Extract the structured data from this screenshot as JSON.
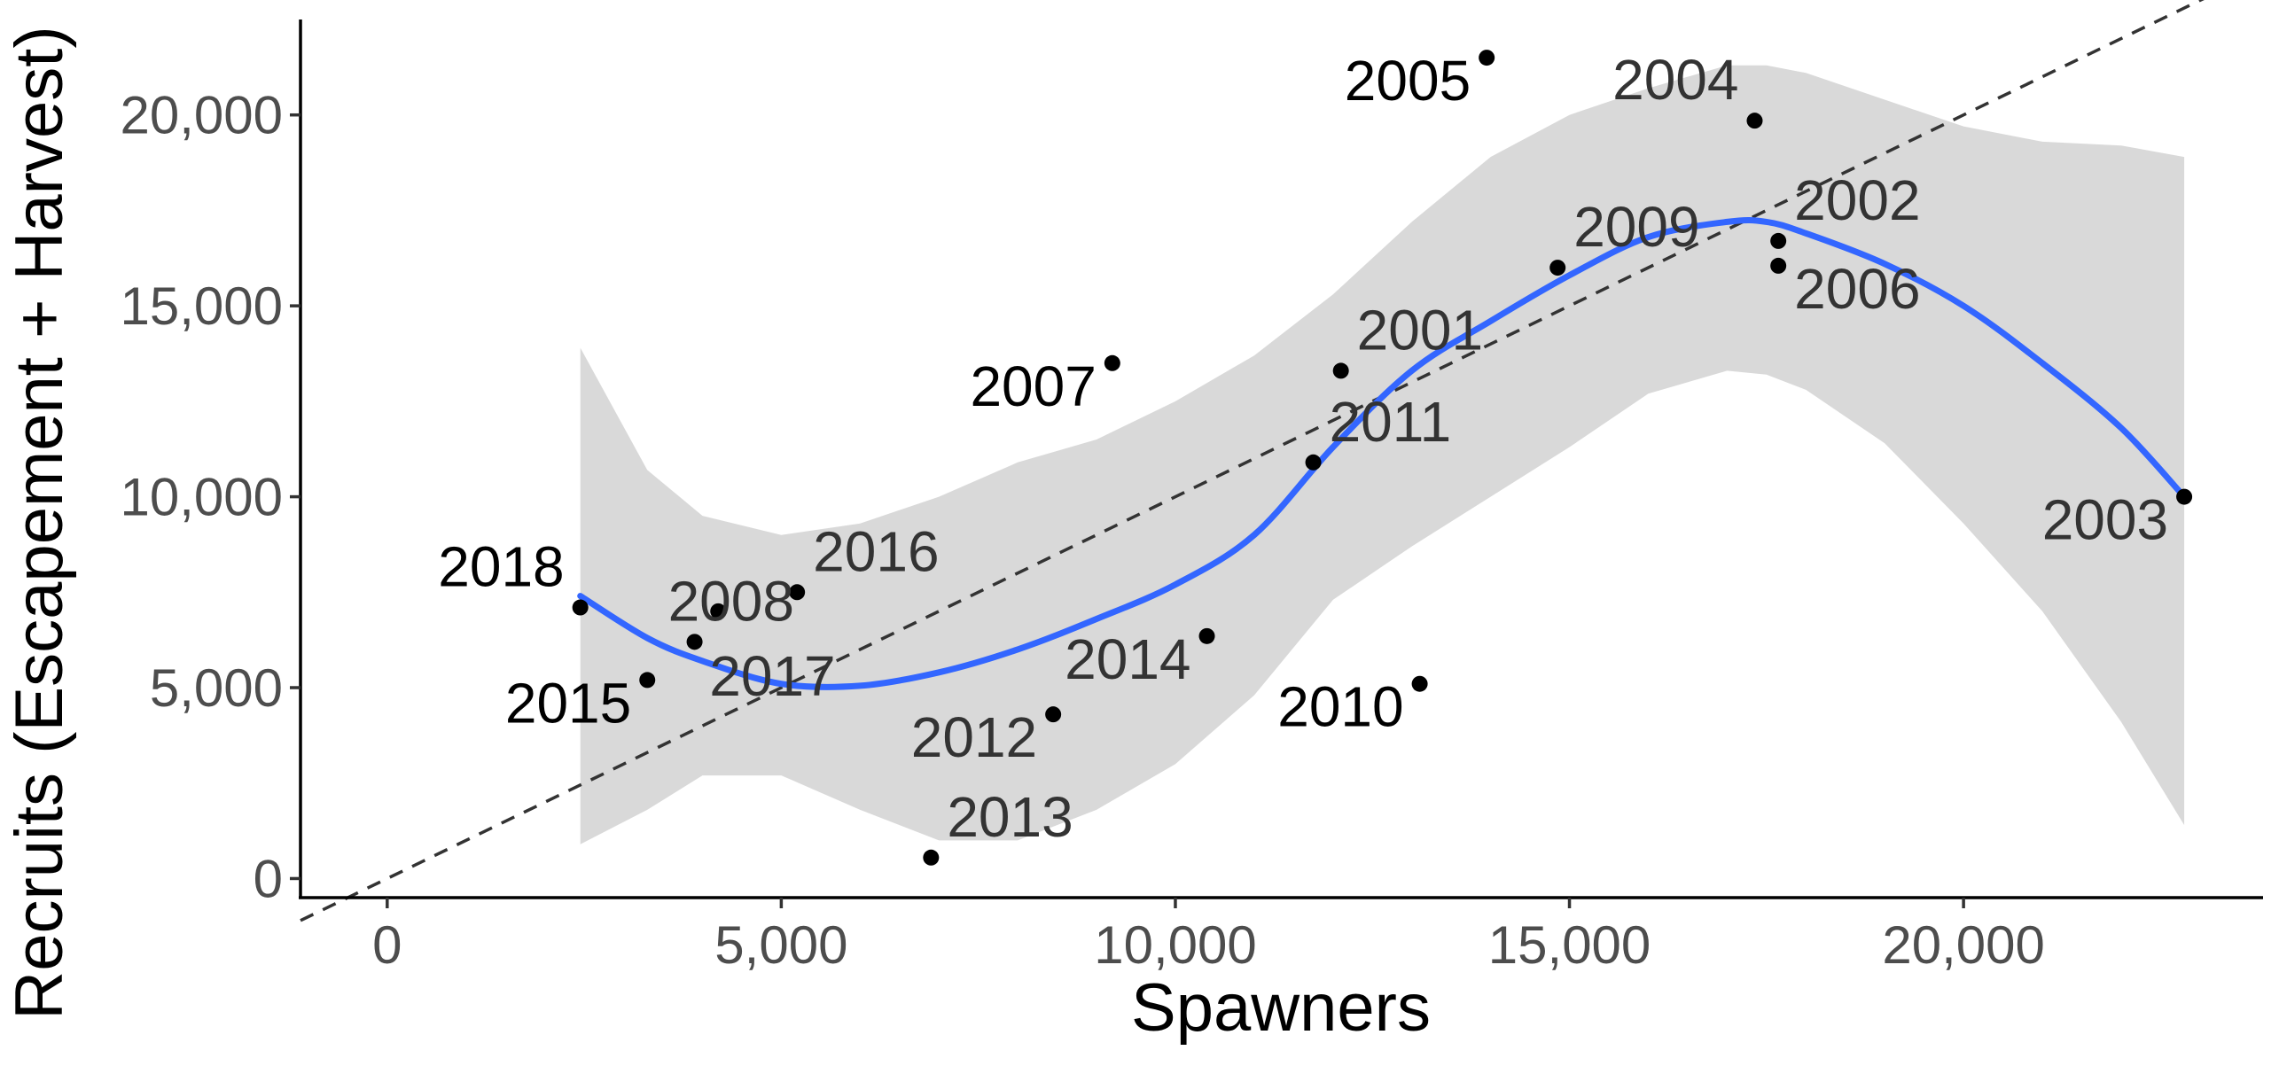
{
  "chart_data": {
    "type": "scatter",
    "title": "",
    "xlabel": "Spawners",
    "ylabel": "Recruits (Escapement + Harvest)",
    "xlim": [
      -1100,
      23800
    ],
    "ylim": [
      -500,
      22500
    ],
    "x_ticks": [
      0,
      5000,
      10000,
      15000,
      20000
    ],
    "x_tick_labels": [
      "0",
      "5,000",
      "10,000",
      "15,000",
      "20,000"
    ],
    "y_ticks": [
      0,
      5000,
      10000,
      15000,
      20000
    ],
    "y_tick_labels": [
      "0",
      "5,000",
      "10,000",
      "15,000",
      "20,000"
    ],
    "grid": false,
    "colors": {
      "points": "#000000",
      "smooth_line": "#3366ff",
      "confidence_band": "#d9d9d9",
      "replacement_line": "#333333",
      "label_dark": "#000000",
      "label_grey": "#333333"
    },
    "points": [
      {
        "label": "2001",
        "x": 12100,
        "y": 13300
      },
      {
        "label": "2002",
        "x": 17650,
        "y": 16700
      },
      {
        "label": "2003",
        "x": 22800,
        "y": 10000
      },
      {
        "label": "2004",
        "x": 17350,
        "y": 19850
      },
      {
        "label": "2005",
        "x": 13950,
        "y": 21500
      },
      {
        "label": "2006",
        "x": 17650,
        "y": 16050
      },
      {
        "label": "2007",
        "x": 9200,
        "y": 13500
      },
      {
        "label": "2008",
        "x": 3900,
        "y": 6200
      },
      {
        "label": "2009",
        "x": 14850,
        "y": 16000
      },
      {
        "label": "2010",
        "x": 13100,
        "y": 5100
      },
      {
        "label": "2011",
        "x": 11750,
        "y": 10900
      },
      {
        "label": "2012",
        "x": 8450,
        "y": 4300
      },
      {
        "label": "2013",
        "x": 6900,
        "y": 550
      },
      {
        "label": "2014",
        "x": 10400,
        "y": 6350
      },
      {
        "label": "2015",
        "x": 3300,
        "y": 5200
      },
      {
        "label": "2016",
        "x": 5200,
        "y": 7500
      },
      {
        "label": "2017",
        "x": 4200,
        "y": 7000
      },
      {
        "label": "2018",
        "x": 2450,
        "y": 7100
      }
    ],
    "smooth_fit": {
      "x": [
        2450,
        3300,
        4000,
        5000,
        6000,
        7000,
        8000,
        9000,
        10000,
        11000,
        12000,
        13000,
        14000,
        15000,
        16000,
        17000,
        17500,
        18000,
        19000,
        20000,
        21000,
        22000,
        22800
      ],
      "y": [
        7400,
        6300,
        5700,
        5100,
        5050,
        5400,
        6000,
        6800,
        7700,
        9000,
        11300,
        13300,
        14600,
        15800,
        16800,
        17200,
        17200,
        16900,
        16100,
        15000,
        13500,
        11800,
        10000
      ],
      "lower": [
        900,
        1800,
        2700,
        2700,
        1800,
        1000,
        1000,
        1800,
        3000,
        4800,
        7300,
        8700,
        10000,
        11300,
        12700,
        13300,
        13200,
        12800,
        11400,
        9300,
        7000,
        4100,
        1400
      ],
      "upper": [
        13900,
        10700,
        9500,
        9000,
        9300,
        10000,
        10900,
        11500,
        12500,
        13700,
        15300,
        17200,
        18900,
        20000,
        20700,
        21300,
        21300,
        21100,
        20400,
        19700,
        19300,
        19200,
        18900
      ]
    },
    "replacement_line": {
      "x": [
        -1100,
        23800
      ],
      "y": [
        -1100,
        23800
      ]
    }
  }
}
